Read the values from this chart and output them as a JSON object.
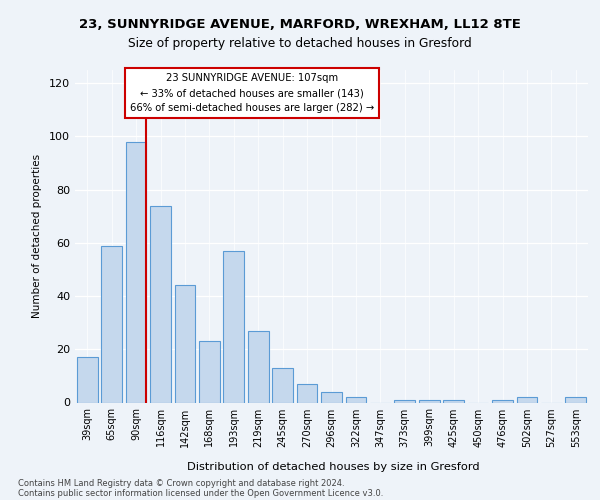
{
  "title1": "23, SUNNYRIDGE AVENUE, MARFORD, WREXHAM, LL12 8TE",
  "title2": "Size of property relative to detached houses in Gresford",
  "xlabel": "Distribution of detached houses by size in Gresford",
  "ylabel": "Number of detached properties",
  "categories": [
    "39sqm",
    "65sqm",
    "90sqm",
    "116sqm",
    "142sqm",
    "168sqm",
    "193sqm",
    "219sqm",
    "245sqm",
    "270sqm",
    "296sqm",
    "322sqm",
    "347sqm",
    "373sqm",
    "399sqm",
    "425sqm",
    "450sqm",
    "476sqm",
    "502sqm",
    "527sqm",
    "553sqm"
  ],
  "bar_heights": [
    17,
    59,
    98,
    74,
    44,
    23,
    57,
    27,
    13,
    7,
    4,
    2,
    0,
    1,
    1,
    1,
    0,
    1,
    2,
    0,
    2
  ],
  "bar_color": "#c5d8ed",
  "bar_edge_color": "#5b9bd5",
  "vline_bin_index": 2,
  "vline_color": "#cc0000",
  "annotation_line1": "23 SUNNYRIDGE AVENUE: 107sqm",
  "annotation_line2": "← 33% of detached houses are smaller (143)",
  "annotation_line3": "66% of semi-detached houses are larger (282) →",
  "annotation_box_color": "white",
  "annotation_box_edge": "#cc0000",
  "ylim_max": 125,
  "yticks": [
    0,
    20,
    40,
    60,
    80,
    100,
    120
  ],
  "footer1": "Contains HM Land Registry data © Crown copyright and database right 2024.",
  "footer2": "Contains public sector information licensed under the Open Government Licence v3.0.",
  "bg_color": "#eef3f9"
}
